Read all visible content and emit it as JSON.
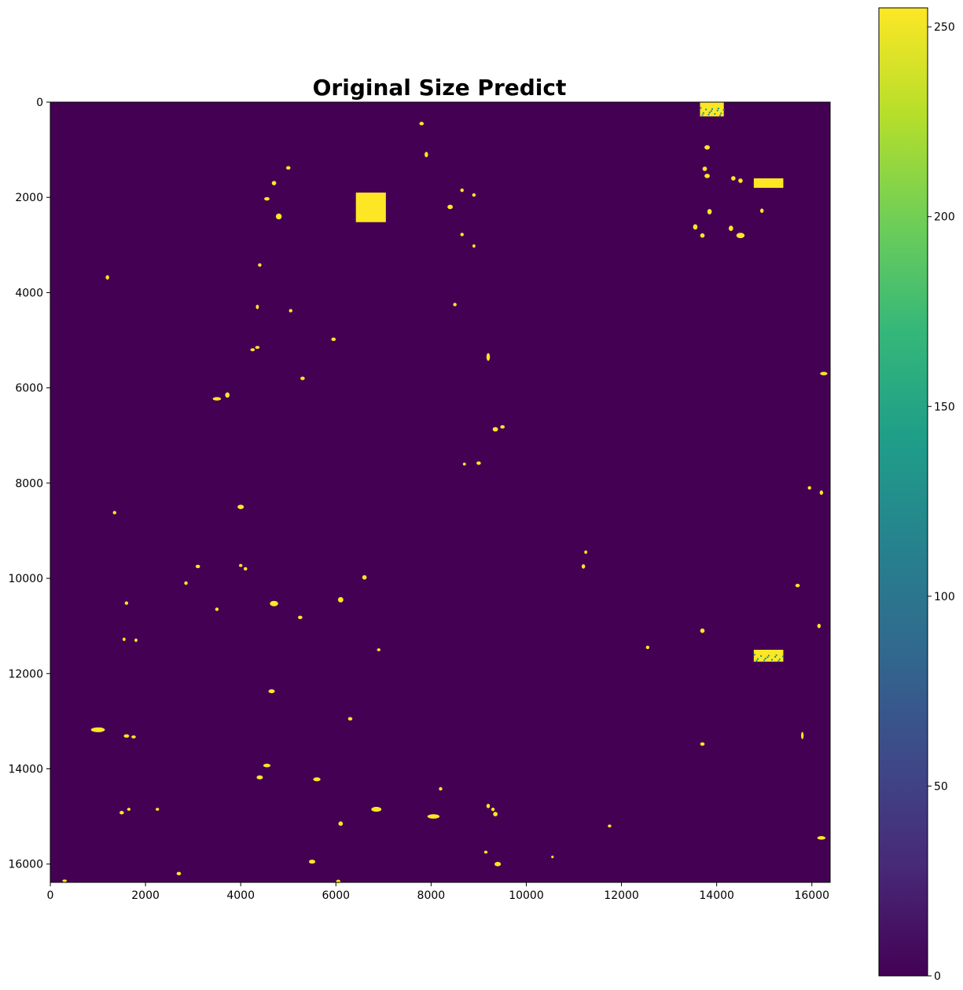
{
  "chart_data": {
    "type": "heatmap",
    "title": "Original Size Predict",
    "xlabel": "",
    "ylabel": "",
    "x_range": [
      0,
      16384
    ],
    "y_range": [
      0,
      16384
    ],
    "y_inverted": true,
    "x_ticks": [
      0,
      2000,
      4000,
      6000,
      8000,
      10000,
      12000,
      14000,
      16000
    ],
    "y_ticks": [
      0,
      2000,
      4000,
      6000,
      8000,
      10000,
      12000,
      14000,
      16000
    ],
    "background_value": 0,
    "colormap": "viridis",
    "colorbar": {
      "range": [
        0,
        255
      ],
      "ticks": [
        0,
        50,
        100,
        150,
        200,
        250
      ],
      "colors": [
        "#440154",
        "#482878",
        "#3e4989",
        "#31688e",
        "#26828e",
        "#1f9e89",
        "#35b779",
        "#6ece58",
        "#b5de2b",
        "#fde725"
      ]
    },
    "colors": {
      "background": "#440154",
      "foreground": "#fde725",
      "speckle": "#21918c"
    },
    "regions": [
      {
        "shape": "rect",
        "x": [
          13650,
          14150
        ],
        "y": [
          0,
          300
        ],
        "value": 255
      },
      {
        "shape": "rect",
        "x": [
          6420,
          7050
        ],
        "y": [
          1900,
          2520
        ],
        "value": 255
      },
      {
        "shape": "rect",
        "x": [
          14780,
          15400
        ],
        "y": [
          1600,
          1800
        ],
        "value": 255
      },
      {
        "shape": "rect",
        "x": [
          14780,
          15400
        ],
        "y": [
          11500,
          11750
        ],
        "value": 255
      }
    ],
    "blobs": [
      [
        7800,
        450,
        60,
        40
      ],
      [
        7900,
        1100,
        40,
        80
      ],
      [
        13800,
        950,
        80,
        60
      ],
      [
        13750,
        1400,
        60,
        60
      ],
      [
        13800,
        1550,
        80,
        60
      ],
      [
        14350,
        1600,
        60,
        60
      ],
      [
        14500,
        1650,
        60,
        60
      ],
      [
        13850,
        2300,
        60,
        80
      ],
      [
        13550,
        2620,
        60,
        80
      ],
      [
        13700,
        2800,
        60,
        60
      ],
      [
        14300,
        2650,
        60,
        80
      ],
      [
        14500,
        2800,
        140,
        80
      ],
      [
        14950,
        2280,
        40,
        60
      ],
      [
        4700,
        1700,
        60,
        60
      ],
      [
        5000,
        1380,
        60,
        40
      ],
      [
        4550,
        2030,
        80,
        40
      ],
      [
        4800,
        2400,
        90,
        90
      ],
      [
        8400,
        2200,
        80,
        60
      ],
      [
        8650,
        1850,
        40,
        40
      ],
      [
        8900,
        1950,
        40,
        40
      ],
      [
        8650,
        2780,
        40,
        40
      ],
      [
        8900,
        3020,
        30,
        40
      ],
      [
        4400,
        3420,
        40,
        40
      ],
      [
        4350,
        4300,
        30,
        60
      ],
      [
        5050,
        4380,
        40,
        40
      ],
      [
        8500,
        4250,
        40,
        40
      ],
      [
        1200,
        3680,
        40,
        60
      ],
      [
        9200,
        5350,
        40,
        130
      ],
      [
        5950,
        4980,
        60,
        40
      ],
      [
        4250,
        5200,
        60,
        30
      ],
      [
        4350,
        5150,
        60,
        30
      ],
      [
        3500,
        6230,
        140,
        40
      ],
      [
        3720,
        6150,
        60,
        80
      ],
      [
        5300,
        5800,
        60,
        40
      ],
      [
        16250,
        5700,
        120,
        40
      ],
      [
        9350,
        6870,
        80,
        60
      ],
      [
        9500,
        6820,
        60,
        40
      ],
      [
        9000,
        7580,
        60,
        40
      ],
      [
        8700,
        7600,
        30,
        30
      ],
      [
        16200,
        8200,
        40,
        60
      ],
      [
        15950,
        8100,
        40,
        40
      ],
      [
        4000,
        8500,
        100,
        60
      ],
      [
        1350,
        8620,
        40,
        40
      ],
      [
        11200,
        9750,
        40,
        60
      ],
      [
        11250,
        9450,
        30,
        40
      ],
      [
        3100,
        9750,
        60,
        40
      ],
      [
        4100,
        9800,
        40,
        40
      ],
      [
        4000,
        9730,
        40,
        30
      ],
      [
        6600,
        9980,
        60,
        60
      ],
      [
        2850,
        10100,
        40,
        40
      ],
      [
        4700,
        10530,
        140,
        80
      ],
      [
        6100,
        10450,
        80,
        80
      ],
      [
        1600,
        10520,
        40,
        40
      ],
      [
        3500,
        10650,
        40,
        40
      ],
      [
        5250,
        10820,
        60,
        40
      ],
      [
        15700,
        10150,
        60,
        40
      ],
      [
        13700,
        11100,
        60,
        60
      ],
      [
        16150,
        11000,
        40,
        60
      ],
      [
        12550,
        11450,
        40,
        40
      ],
      [
        1550,
        11280,
        30,
        40
      ],
      [
        1800,
        11300,
        30,
        40
      ],
      [
        6900,
        11500,
        40,
        30
      ],
      [
        4650,
        12370,
        100,
        50
      ],
      [
        6300,
        12950,
        60,
        40
      ],
      [
        1000,
        13180,
        260,
        70
      ],
      [
        1600,
        13310,
        80,
        40
      ],
      [
        1750,
        13330,
        60,
        30
      ],
      [
        13700,
        13480,
        60,
        40
      ],
      [
        15800,
        13300,
        20,
        120
      ],
      [
        4550,
        13930,
        120,
        40
      ],
      [
        4400,
        14180,
        100,
        50
      ],
      [
        5600,
        14220,
        120,
        50
      ],
      [
        8200,
        14420,
        40,
        40
      ],
      [
        6850,
        14850,
        180,
        70
      ],
      [
        8050,
        15000,
        220,
        60
      ],
      [
        9300,
        14850,
        40,
        40
      ],
      [
        9350,
        14950,
        60,
        60
      ],
      [
        9200,
        14780,
        40,
        60
      ],
      [
        6100,
        15150,
        60,
        60
      ],
      [
        1500,
        14920,
        60,
        40
      ],
      [
        1650,
        14850,
        40,
        30
      ],
      [
        2250,
        14850,
        40,
        30
      ],
      [
        5500,
        15950,
        100,
        50
      ],
      [
        9400,
        16000,
        100,
        60
      ],
      [
        9150,
        15750,
        40,
        30
      ],
      [
        16200,
        15450,
        140,
        40
      ],
      [
        11750,
        15200,
        40,
        30
      ],
      [
        2700,
        16200,
        60,
        40
      ],
      [
        6050,
        16370,
        60,
        50
      ],
      [
        300,
        16350,
        60,
        20
      ],
      [
        10550,
        15850,
        20,
        20
      ]
    ]
  }
}
